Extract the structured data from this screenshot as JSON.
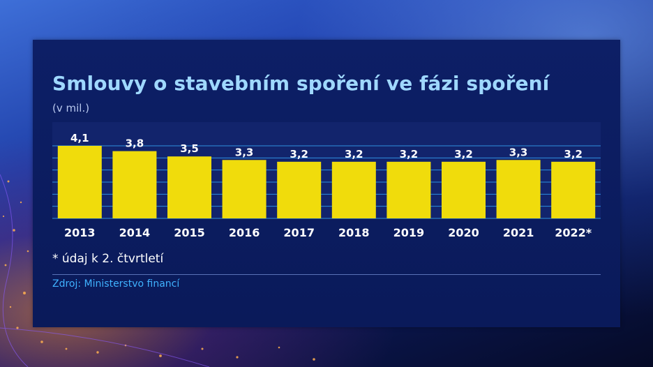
{
  "chart_data": {
    "type": "bar",
    "title": "Smlouvy o stavebním spoření ve fázi spoření",
    "subtitle": "(v mil.)",
    "categories": [
      "2013",
      "2014",
      "2015",
      "2016",
      "2017",
      "2018",
      "2019",
      "2020",
      "2021",
      "2022*"
    ],
    "values": [
      4.1,
      3.8,
      3.5,
      3.3,
      3.2,
      3.2,
      3.2,
      3.2,
      3.3,
      3.2
    ],
    "value_labels": [
      "4,1",
      "3,8",
      "3,5",
      "3,3",
      "3,2",
      "3,2",
      "3,2",
      "3,2",
      "3,3",
      "3,2"
    ],
    "ylim": [
      0,
      4.1
    ],
    "grid": true,
    "bar_color": "#f0dc0c",
    "grid_color": "#2f8fe0",
    "note": "* údaj k 2. čtvrtletí",
    "source": "Zdroj: Ministerstvo financí"
  }
}
